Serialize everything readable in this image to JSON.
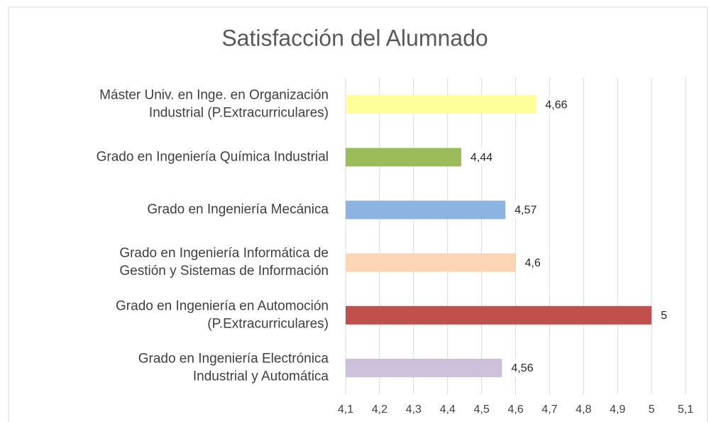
{
  "chart_data": {
    "type": "bar",
    "orientation": "horizontal",
    "title": "Satisfacción del Alumnado",
    "categories": [
      "Máster Univ. en Inge. en Organización\nIndustrial (P.Extracurriculares)",
      "Grado en Ingeniería Química Industrial",
      "Grado en Ingeniería Mecánica",
      "Grado en Ingeniería Informática de\nGestión y Sistemas de Información",
      "Grado en Ingeniería en Automoción\n(P.Extracurriculares)",
      "Grado en Ingeniería Electrónica\nIndustrial y Automática"
    ],
    "values": [
      4.66,
      4.44,
      4.57,
      4.6,
      5,
      4.56
    ],
    "value_labels": [
      "4,66",
      "4,44",
      "4,57",
      "4,6",
      "5",
      "4,56"
    ],
    "colors": [
      "#ffff99",
      "#9bbb59",
      "#8db3e2",
      "#fcd5b4",
      "#c0504d",
      "#ccc0da"
    ],
    "xlim": [
      4.1,
      5.1
    ],
    "xticks": [
      {
        "value": 4.1,
        "label": "4,1"
      },
      {
        "value": 4.2,
        "label": "4,2"
      },
      {
        "value": 4.3,
        "label": "4,3"
      },
      {
        "value": 4.4,
        "label": "4,4"
      },
      {
        "value": 4.5,
        "label": "4,5"
      },
      {
        "value": 4.6,
        "label": "4,6"
      },
      {
        "value": 4.7,
        "label": "4,7"
      },
      {
        "value": 4.8,
        "label": "4,8"
      },
      {
        "value": 4.9,
        "label": "4,9"
      },
      {
        "value": 5,
        "label": "5"
      },
      {
        "value": 5.1,
        "label": "5,1"
      }
    ],
    "grid": true
  }
}
